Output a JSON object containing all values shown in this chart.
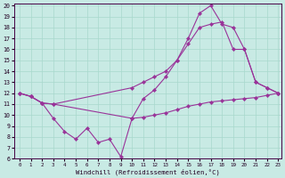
{
  "xlabel": "Windchill (Refroidissement éolien,°C)",
  "xlim": [
    0,
    23
  ],
  "ylim": [
    6,
    20
  ],
  "xticks": [
    0,
    1,
    2,
    3,
    4,
    5,
    6,
    7,
    8,
    9,
    10,
    11,
    12,
    13,
    14,
    15,
    16,
    17,
    18,
    19,
    20,
    21,
    22,
    23
  ],
  "yticks": [
    6,
    7,
    8,
    9,
    10,
    11,
    12,
    13,
    14,
    15,
    16,
    17,
    18,
    19,
    20
  ],
  "bg_color": "#c8eae4",
  "line_color": "#993399",
  "grid_color": "#a8d8cc",
  "curve1_x": [
    0,
    1,
    2,
    3,
    4,
    5,
    6,
    7,
    8,
    9,
    10,
    11,
    12,
    13,
    14,
    15,
    16,
    17,
    18,
    19,
    20,
    21,
    22,
    23
  ],
  "curve1_y": [
    12,
    11.7,
    11.1,
    9.7,
    8.5,
    7.8,
    8.8,
    7.5,
    7.8,
    6.2,
    9.7,
    9.8,
    10.0,
    10.2,
    10.5,
    10.8,
    11.0,
    11.2,
    11.3,
    11.4,
    11.5,
    11.6,
    11.8,
    12.0
  ],
  "curve2_x": [
    0,
    1,
    2,
    3,
    10,
    11,
    12,
    13,
    14,
    15,
    16,
    17,
    18,
    19,
    20,
    21,
    22,
    23
  ],
  "curve2_y": [
    12,
    11.7,
    11.1,
    11.0,
    12.5,
    13.0,
    13.5,
    14.0,
    15.0,
    16.5,
    18.0,
    18.3,
    18.5,
    16.0,
    16.0,
    13.0,
    12.5,
    12.0
  ],
  "curve3_x": [
    0,
    1,
    2,
    3,
    10,
    11,
    12,
    13,
    14,
    15,
    16,
    17,
    18,
    19,
    20,
    21,
    22,
    23
  ],
  "curve3_y": [
    12,
    11.7,
    11.1,
    11.0,
    9.7,
    11.5,
    12.3,
    13.5,
    15.0,
    17.0,
    19.3,
    20.0,
    18.3,
    18.0,
    16.0,
    13.0,
    12.5,
    12.0
  ]
}
